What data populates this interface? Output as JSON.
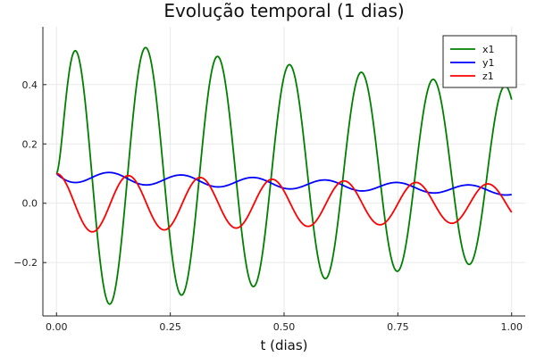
{
  "chart_data": {
    "type": "line",
    "title": "Evolução temporal (1 dias)",
    "xlabel": "t (dias)",
    "ylabel": "",
    "xlim": [
      -0.03,
      1.03
    ],
    "ylim": [
      -0.38,
      0.595
    ],
    "xticks": [
      0.0,
      0.25,
      0.5,
      0.75,
      1.0
    ],
    "xtick_labels": [
      "0.00",
      "0.25",
      "0.50",
      "0.75",
      "1.00"
    ],
    "yticks": [
      -0.2,
      0.0,
      0.2,
      0.4
    ],
    "ytick_labels": [
      "−0.2",
      "0.0",
      "0.2",
      "0.4"
    ],
    "grid": true,
    "legend_position": "top-right",
    "series": [
      {
        "name": "x1",
        "color": "#008000",
        "model": {
          "offset": 0.1,
          "amplitude": 0.465,
          "decay": 0.46,
          "period": 0.158,
          "phase_peak": 0.038
        },
        "points": [
          [
            0.0,
            0.1
          ],
          [
            0.038,
            0.565
          ],
          [
            0.117,
            -0.36
          ],
          [
            0.196,
            0.52
          ],
          [
            0.275,
            -0.335
          ],
          [
            0.354,
            0.48
          ],
          [
            0.433,
            -0.31
          ],
          [
            0.512,
            0.44
          ],
          [
            0.591,
            -0.285
          ],
          [
            0.67,
            0.405
          ],
          [
            0.749,
            -0.265
          ],
          [
            0.828,
            0.37
          ],
          [
            0.907,
            -0.245
          ],
          [
            0.986,
            0.34
          ],
          [
            1.0,
            0.245
          ]
        ]
      },
      {
        "name": "y1",
        "color": "#0000ff",
        "model": {
          "offset": 0.09,
          "trend": -0.048,
          "amplitude": 0.02,
          "decay": 0.3,
          "period": 0.158,
          "phase_peak": 0.117
        },
        "points": [
          [
            0.0,
            0.1
          ],
          [
            0.038,
            0.075
          ],
          [
            0.117,
            0.11
          ],
          [
            0.196,
            0.07
          ],
          [
            0.275,
            0.1
          ],
          [
            0.354,
            0.065
          ],
          [
            0.433,
            0.09
          ],
          [
            0.512,
            0.058
          ],
          [
            0.591,
            0.082
          ],
          [
            0.67,
            0.052
          ],
          [
            0.749,
            0.075
          ],
          [
            0.828,
            0.045
          ],
          [
            0.907,
            0.067
          ],
          [
            0.986,
            0.04
          ],
          [
            1.0,
            0.042
          ]
        ]
      },
      {
        "name": "z1",
        "color": "#ff0000",
        "model": {
          "amplitude": 0.1,
          "decay": 0.45,
          "period": 0.158
        },
        "points": [
          [
            0.0,
            0.1
          ],
          [
            0.04,
            0.0
          ],
          [
            0.08,
            -0.095
          ],
          [
            0.158,
            0.09
          ],
          [
            0.237,
            -0.085
          ],
          [
            0.316,
            0.08
          ],
          [
            0.395,
            -0.078
          ],
          [
            0.474,
            0.075
          ],
          [
            0.553,
            -0.072
          ],
          [
            0.632,
            0.07
          ],
          [
            0.711,
            -0.065
          ],
          [
            0.79,
            0.065
          ],
          [
            0.869,
            -0.062
          ],
          [
            0.948,
            0.06
          ],
          [
            1.0,
            -0.042
          ]
        ]
      }
    ]
  }
}
